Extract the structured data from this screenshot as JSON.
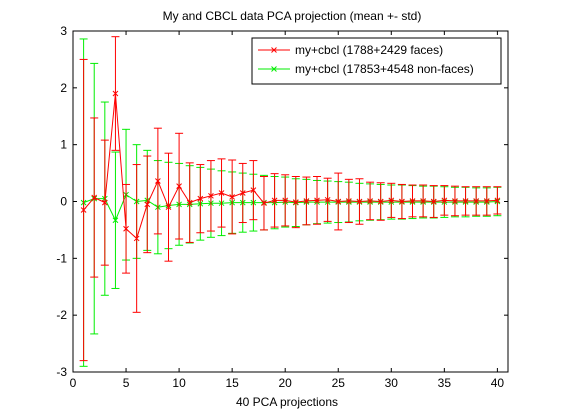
{
  "chart_data": {
    "type": "line",
    "title": "My and CBCL data PCA projection (mean +- std)",
    "xlabel": "40 PCA projections",
    "ylabel": "",
    "xlim": [
      0,
      41
    ],
    "ylim": [
      -3,
      3
    ],
    "xticks": [
      0,
      5,
      10,
      15,
      20,
      25,
      30,
      35,
      40
    ],
    "yticks": [
      -3,
      -2,
      -1,
      0,
      1,
      2,
      3
    ],
    "grid": false,
    "legend_position": "top-right",
    "x": [
      1,
      2,
      3,
      4,
      5,
      6,
      7,
      8,
      9,
      10,
      11,
      12,
      13,
      14,
      15,
      16,
      17,
      18,
      19,
      20,
      21,
      22,
      23,
      24,
      25,
      26,
      27,
      28,
      29,
      30,
      31,
      32,
      33,
      34,
      35,
      36,
      37,
      38,
      39,
      40
    ],
    "series": [
      {
        "name": "my+cbcl (1788+2429 faces)",
        "color": "#ff0000",
        "marker": "x",
        "mean": [
          -0.15,
          0.07,
          -0.02,
          1.9,
          -0.48,
          -0.65,
          -0.05,
          0.36,
          -0.1,
          0.27,
          -0.02,
          0.05,
          0.1,
          0.15,
          0.08,
          0.15,
          0.2,
          -0.03,
          0.02,
          0.02,
          -0.01,
          0.01,
          0.02,
          0.03,
          0.0,
          0.01,
          0.0,
          0.01,
          0.0,
          0.02,
          0.0,
          0.01,
          0.01,
          0.0,
          0.02,
          0.01,
          0.01,
          0.01,
          0.01,
          0.02
        ],
        "std": [
          2.65,
          1.4,
          1.1,
          1.0,
          0.78,
          1.3,
          0.85,
          0.93,
          0.95,
          0.93,
          0.7,
          0.6,
          0.62,
          0.6,
          0.65,
          0.52,
          0.52,
          0.47,
          0.47,
          0.45,
          0.45,
          0.42,
          0.42,
          0.38,
          0.5,
          0.38,
          0.4,
          0.33,
          0.33,
          0.3,
          0.3,
          0.28,
          0.28,
          0.28,
          0.26,
          0.26,
          0.25,
          0.25,
          0.25,
          0.24
        ]
      },
      {
        "name": "my+cbcl (17853+4548 non-faces)",
        "color": "#00ee00",
        "marker": "x",
        "mean": [
          -0.02,
          0.05,
          0.05,
          -0.33,
          0.12,
          0.0,
          0.02,
          -0.1,
          -0.07,
          -0.05,
          -0.05,
          -0.04,
          -0.03,
          -0.03,
          -0.02,
          -0.02,
          -0.02,
          -0.02,
          -0.02,
          -0.01,
          -0.02,
          -0.01,
          -0.01,
          -0.01,
          -0.01,
          -0.01,
          -0.01,
          -0.01,
          -0.01,
          -0.01,
          -0.01,
          -0.01,
          -0.01,
          -0.01,
          -0.01,
          -0.01,
          -0.01,
          -0.01,
          -0.01,
          0.0
        ],
        "std": [
          2.88,
          2.38,
          1.7,
          1.2,
          1.15,
          1.0,
          0.88,
          0.82,
          0.76,
          0.72,
          0.68,
          0.64,
          0.6,
          0.57,
          0.54,
          0.52,
          0.5,
          0.48,
          0.46,
          0.44,
          0.42,
          0.4,
          0.38,
          0.37,
          0.36,
          0.35,
          0.33,
          0.32,
          0.31,
          0.3,
          0.3,
          0.29,
          0.28,
          0.28,
          0.27,
          0.26,
          0.26,
          0.25,
          0.25,
          0.25
        ]
      }
    ]
  }
}
